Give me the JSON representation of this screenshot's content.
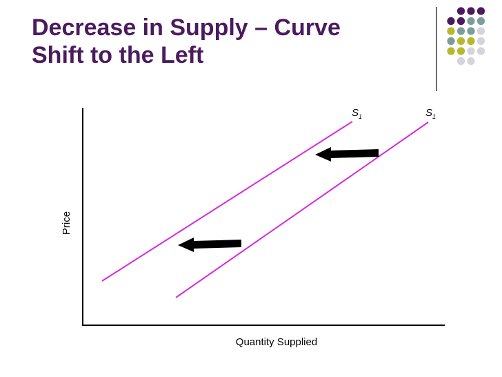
{
  "slide": {
    "title_line1": "Decrease in Supply – Curve",
    "title_line2": "Shift to the Left"
  },
  "diagram": {
    "x_axis_label": "Quantity Supplied",
    "y_axis_label": "Price",
    "curves": [
      {
        "label": "S",
        "subscript": "1"
      },
      {
        "label": "S",
        "subscript": "1"
      }
    ],
    "arrow_direction": "left"
  },
  "colors": {
    "title": "#4b1b5e",
    "curve": "#d62ad8",
    "arrow": "#000000",
    "deco_purple": "#4b1b5e",
    "deco_teal": "#7c9e9a",
    "deco_olive": "#b8b82c",
    "deco_grey": "#d4d4dc"
  }
}
